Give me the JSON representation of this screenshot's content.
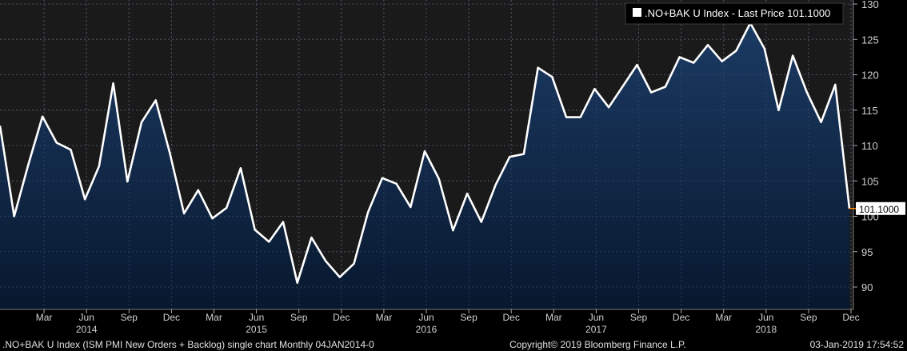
{
  "chart_data": {
    "type": "area",
    "legend": "top-right",
    "series": [
      {
        "name": ".NO+BAK U Index - Last Price 101.1000",
        "color": "#ffffff",
        "fill_top": "#1b3a63",
        "fill_bottom": "#08182e",
        "x": [
          "Dec 2013",
          "Jan 2014",
          "Feb 2014",
          "Mar 2014",
          "Apr 2014",
          "May 2014",
          "Jun 2014",
          "Jul 2014",
          "Aug 2014",
          "Sep 2014",
          "Oct 2014",
          "Nov 2014",
          "Dec 2014",
          "Jan 2015",
          "Feb 2015",
          "Mar 2015",
          "Apr 2015",
          "May 2015",
          "Jun 2015",
          "Jul 2015",
          "Aug 2015",
          "Sep 2015",
          "Oct 2015",
          "Nov 2015",
          "Dec 2015",
          "Jan 2016",
          "Feb 2016",
          "Mar 2016",
          "Apr 2016",
          "May 2016",
          "Jun 2016",
          "Jul 2016",
          "Aug 2016",
          "Sep 2016",
          "Oct 2016",
          "Nov 2016",
          "Dec 2016",
          "Jan 2017",
          "Feb 2017",
          "Mar 2017",
          "Apr 2017",
          "May 2017",
          "Jun 2017",
          "Jul 2017",
          "Aug 2017",
          "Sep 2017",
          "Oct 2017",
          "Nov 2017",
          "Dec 2017",
          "Jan 2018",
          "Feb 2018",
          "Mar 2018",
          "Apr 2018",
          "May 2018",
          "Jun 2018",
          "Jul 2018",
          "Aug 2018",
          "Sep 2018",
          "Oct 2018",
          "Nov 2018",
          "Dec 2018"
        ],
        "values": [
          112.8,
          100.0,
          107.3,
          114.1,
          110.4,
          109.4,
          102.4,
          107.1,
          118.8,
          104.9,
          113.3,
          116.4,
          108.9,
          100.4,
          103.7,
          99.7,
          101.2,
          106.8,
          98.1,
          96.4,
          99.2,
          90.6,
          97.0,
          93.7,
          91.4,
          93.3,
          100.6,
          105.4,
          104.6,
          101.3,
          109.2,
          105.3,
          98.0,
          103.2,
          99.2,
          104.4,
          108.4,
          108.8,
          121.0,
          119.7,
          114.0,
          114.0,
          118.0,
          115.4,
          118.4,
          121.4,
          117.5,
          118.3,
          122.5,
          121.7,
          124.2,
          121.9,
          123.4,
          127.3,
          123.7,
          115.0,
          122.7,
          117.5,
          113.3,
          118.6,
          101.1
        ]
      }
    ],
    "ylim": [
      86.5,
      131
    ],
    "yticks": [
      90,
      95,
      100,
      105,
      110,
      115,
      120,
      125,
      130
    ],
    "last_value_label": "101.1000",
    "x_month_ticks": [
      "Mar",
      "Jun",
      "Sep",
      "Dec",
      "Mar",
      "Jun",
      "Sep",
      "Dec",
      "Mar",
      "Jun",
      "Sep",
      "Dec",
      "Mar",
      "Jun",
      "Sep",
      "Dec",
      "Mar",
      "Jun",
      "Sep",
      "Dec"
    ],
    "x_year_labels": [
      "2014",
      "2015",
      "2016",
      "2017",
      "2018"
    ],
    "title": "",
    "xlabel": "",
    "ylabel": "",
    "grid": true
  },
  "footer": {
    "left": ".NO+BAK U Index (ISM PMI New Orders + Backlog) single chart  Monthly 04JAN2014-0",
    "center": "Copyright© 2019 Bloomberg Finance L.P.",
    "right": "03-Jan-2019 17:54:52"
  },
  "colors": {
    "background": "#000000",
    "plot_background": "#1a1a1a",
    "grid": "#555555",
    "line": "#ffffff",
    "last_marker": "#ff8c00"
  }
}
